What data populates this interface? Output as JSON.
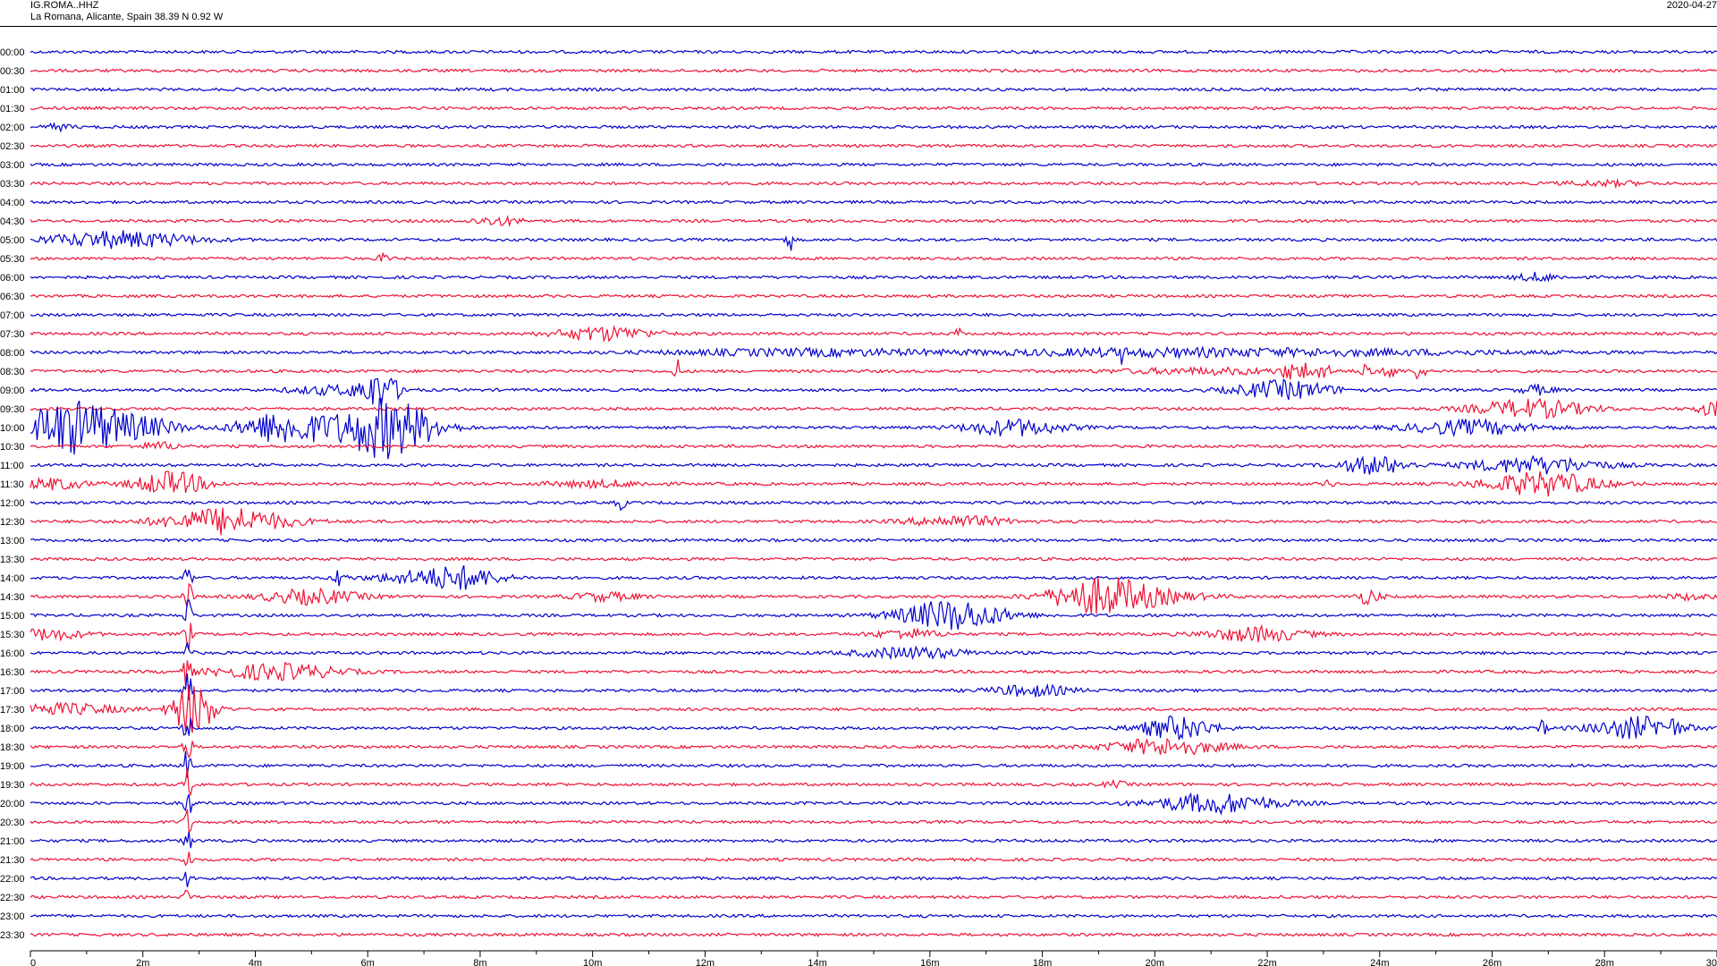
{
  "header": {
    "station": "IG.ROMA..HHZ",
    "location": "La Romana, Alicante, Spain  38.39 N 0.92 W",
    "date": "2020-04-27"
  },
  "chart_data": {
    "type": "line",
    "subtype": "helicorder",
    "title": "",
    "colors": [
      "#0000cc",
      "#ee1133"
    ],
    "grid": false,
    "xlabel": "",
    "xlim": [
      0,
      30
    ],
    "xunit": "minutes",
    "x_ticks": [
      "0",
      "2m",
      "4m",
      "6m",
      "8m",
      "10m",
      "12m",
      "14m",
      "16m",
      "18m",
      "20m",
      "22m",
      "24m",
      "26m",
      "28m",
      "30"
    ],
    "row_labels": [
      "00:00",
      "00:30",
      "01:00",
      "01:30",
      "02:00",
      "02:30",
      "03:00",
      "03:30",
      "04:00",
      "04:30",
      "05:00",
      "05:30",
      "06:00",
      "06:30",
      "07:00",
      "07:30",
      "08:00",
      "08:30",
      "09:00",
      "09:30",
      "10:00",
      "10:30",
      "11:00",
      "11:30",
      "12:00",
      "12:30",
      "13:00",
      "13:30",
      "14:00",
      "14:30",
      "15:00",
      "15:30",
      "16:00",
      "16:30",
      "17:00",
      "17:30",
      "18:00",
      "18:30",
      "19:00",
      "19:30",
      "20:00",
      "20:30",
      "21:00",
      "21:30",
      "22:00",
      "22:30",
      "23:00",
      "23:30"
    ],
    "events": [
      {
        "row": 4,
        "x": 0.5,
        "dur": 0.3,
        "amp": 0.35
      },
      {
        "row": 7,
        "x": 28.0,
        "dur": 1.0,
        "amp": 0.25
      },
      {
        "row": 9,
        "x": 8.3,
        "dur": 0.6,
        "amp": 0.45
      },
      {
        "row": 10,
        "x": 1.6,
        "dur": 1.8,
        "amp": 0.9
      },
      {
        "row": 10,
        "x": 13.5,
        "dur": 0.08,
        "amp": 1.6
      },
      {
        "row": 11,
        "x": 6.3,
        "dur": 0.15,
        "amp": 0.5
      },
      {
        "row": 12,
        "x": 26.8,
        "dur": 0.5,
        "amp": 0.45
      },
      {
        "row": 15,
        "x": 10.2,
        "dur": 1.2,
        "amp": 0.75
      },
      {
        "row": 15,
        "x": 16.5,
        "dur": 0.06,
        "amp": 1.0
      },
      {
        "row": 16,
        "x": 13.8,
        "dur": 3.5,
        "amp": 0.35
      },
      {
        "row": 16,
        "x": 19.5,
        "dur": 3.5,
        "amp": 0.3
      },
      {
        "row": 16,
        "x": 23.0,
        "dur": 5.0,
        "amp": 0.3
      },
      {
        "row": 16,
        "x": 19.4,
        "dur": 0.06,
        "amp": 0.9
      },
      {
        "row": 17,
        "x": 11.5,
        "dur": 0.08,
        "amp": 1.5
      },
      {
        "row": 17,
        "x": 22.4,
        "dur": 0.15,
        "amp": 1.1
      },
      {
        "row": 17,
        "x": 22.7,
        "dur": 0.15,
        "amp": 1.0
      },
      {
        "row": 17,
        "x": 23.0,
        "dur": 0.15,
        "amp": 1.0
      },
      {
        "row": 17,
        "x": 23.8,
        "dur": 0.15,
        "amp": 1.0
      },
      {
        "row": 17,
        "x": 24.2,
        "dur": 0.15,
        "amp": 1.0
      },
      {
        "row": 17,
        "x": 24.7,
        "dur": 0.15,
        "amp": 1.0
      },
      {
        "row": 17,
        "x": 21.0,
        "dur": 2.5,
        "amp": 0.3
      },
      {
        "row": 18,
        "x": 5.3,
        "dur": 1.0,
        "amp": 0.45
      },
      {
        "row": 18,
        "x": 6.2,
        "dur": 0.5,
        "amp": 2.0
      },
      {
        "row": 18,
        "x": 22.3,
        "dur": 1.2,
        "amp": 1.0
      },
      {
        "row": 18,
        "x": 26.8,
        "dur": 0.4,
        "amp": 0.5
      },
      {
        "row": 19,
        "x": 26.7,
        "dur": 1.4,
        "amp": 1.0
      },
      {
        "row": 19,
        "x": 30.0,
        "dur": 0.5,
        "amp": 0.8
      },
      {
        "row": 20,
        "x": 0.8,
        "dur": 1.5,
        "amp": 3.0
      },
      {
        "row": 20,
        "x": 2.2,
        "dur": 0.8,
        "amp": 0.5
      },
      {
        "row": 20,
        "x": 4.4,
        "dur": 1.0,
        "amp": 1.5
      },
      {
        "row": 20,
        "x": 5.2,
        "dur": 1.2,
        "amp": 0.7
      },
      {
        "row": 20,
        "x": 6.3,
        "dur": 1.0,
        "amp": 3.2
      },
      {
        "row": 20,
        "x": 7.0,
        "dur": 0.8,
        "amp": 0.6
      },
      {
        "row": 20,
        "x": 17.5,
        "dur": 1.2,
        "amp": 0.9
      },
      {
        "row": 20,
        "x": 25.6,
        "dur": 1.5,
        "amp": 0.8
      },
      {
        "row": 21,
        "x": 2.3,
        "dur": 0.5,
        "amp": 0.4
      },
      {
        "row": 22,
        "x": 23.9,
        "dur": 0.8,
        "amp": 1.0
      },
      {
        "row": 22,
        "x": 26.8,
        "dur": 1.6,
        "amp": 0.9
      },
      {
        "row": 23,
        "x": 0.4,
        "dur": 0.8,
        "amp": 0.6
      },
      {
        "row": 23,
        "x": 2.5,
        "dur": 0.9,
        "amp": 1.3
      },
      {
        "row": 23,
        "x": 10.1,
        "dur": 1.2,
        "amp": 0.35
      },
      {
        "row": 23,
        "x": 23.1,
        "dur": 0.1,
        "amp": 0.6
      },
      {
        "row": 23,
        "x": 26.9,
        "dur": 1.4,
        "amp": 1.3
      },
      {
        "row": 24,
        "x": 10.5,
        "dur": 0.1,
        "amp": 1.0
      },
      {
        "row": 25,
        "x": 3.5,
        "dur": 1.5,
        "amp": 1.5
      },
      {
        "row": 25,
        "x": 16.5,
        "dur": 1.2,
        "amp": 0.6
      },
      {
        "row": 28,
        "x": 5.5,
        "dur": 0.15,
        "amp": 1.0
      },
      {
        "row": 28,
        "x": 6.8,
        "dur": 1.0,
        "amp": 0.6
      },
      {
        "row": 28,
        "x": 7.7,
        "dur": 0.9,
        "amp": 1.2
      },
      {
        "row": 28,
        "x": 2.8,
        "dur": 0.1,
        "amp": 1.5
      },
      {
        "row": 29,
        "x": 2.8,
        "dur": 0.1,
        "amp": 2.0
      },
      {
        "row": 29,
        "x": 5.0,
        "dur": 1.2,
        "amp": 0.8
      },
      {
        "row": 29,
        "x": 10.2,
        "dur": 0.8,
        "amp": 0.45
      },
      {
        "row": 29,
        "x": 19.0,
        "dur": 1.2,
        "amp": 1.8
      },
      {
        "row": 29,
        "x": 19.8,
        "dur": 1.5,
        "amp": 0.6
      },
      {
        "row": 29,
        "x": 23.8,
        "dur": 0.3,
        "amp": 0.8
      },
      {
        "row": 29,
        "x": 29.5,
        "dur": 0.6,
        "amp": 0.3
      },
      {
        "row": 30,
        "x": 2.8,
        "dur": 0.1,
        "amp": 2.0
      },
      {
        "row": 30,
        "x": 16.4,
        "dur": 1.3,
        "amp": 1.7
      },
      {
        "row": 31,
        "x": 0.3,
        "dur": 0.9,
        "amp": 0.6
      },
      {
        "row": 31,
        "x": 2.8,
        "dur": 0.1,
        "amp": 2.0
      },
      {
        "row": 31,
        "x": 15.6,
        "dur": 0.8,
        "amp": 0.5
      },
      {
        "row": 31,
        "x": 21.8,
        "dur": 1.2,
        "amp": 0.8
      },
      {
        "row": 32,
        "x": 2.8,
        "dur": 0.1,
        "amp": 2.0
      },
      {
        "row": 32,
        "x": 15.7,
        "dur": 1.4,
        "amp": 0.6
      },
      {
        "row": 33,
        "x": 2.8,
        "dur": 0.1,
        "amp": 2.0
      },
      {
        "row": 33,
        "x": 4.4,
        "dur": 1.5,
        "amp": 0.9
      },
      {
        "row": 34,
        "x": 2.8,
        "dur": 0.1,
        "amp": 2.0
      },
      {
        "row": 34,
        "x": 17.8,
        "dur": 1.0,
        "amp": 0.6
      },
      {
        "row": 35,
        "x": 0.5,
        "dur": 1.5,
        "amp": 0.6
      },
      {
        "row": 35,
        "x": 2.9,
        "dur": 0.5,
        "amp": 3.0
      },
      {
        "row": 36,
        "x": 2.8,
        "dur": 0.1,
        "amp": 2.0
      },
      {
        "row": 36,
        "x": 20.4,
        "dur": 0.9,
        "amp": 1.3
      },
      {
        "row": 36,
        "x": 26.9,
        "dur": 0.1,
        "amp": 0.8
      },
      {
        "row": 36,
        "x": 28.6,
        "dur": 1.1,
        "amp": 1.2
      },
      {
        "row": 36,
        "x": 29.2,
        "dur": 0.1,
        "amp": 0.6
      },
      {
        "row": 37,
        "x": 2.8,
        "dur": 0.1,
        "amp": 2.0
      },
      {
        "row": 37,
        "x": 20.2,
        "dur": 1.4,
        "amp": 0.9
      },
      {
        "row": 38,
        "x": 2.8,
        "dur": 0.1,
        "amp": 2.0
      },
      {
        "row": 39,
        "x": 2.8,
        "dur": 0.1,
        "amp": 2.0
      },
      {
        "row": 39,
        "x": 19.3,
        "dur": 0.3,
        "amp": 0.3
      },
      {
        "row": 40,
        "x": 2.8,
        "dur": 0.1,
        "amp": 2.0
      },
      {
        "row": 40,
        "x": 21.1,
        "dur": 1.5,
        "amp": 1.1
      },
      {
        "row": 41,
        "x": 2.8,
        "dur": 0.1,
        "amp": 1.5
      },
      {
        "row": 42,
        "x": 2.8,
        "dur": 0.1,
        "amp": 1.2
      },
      {
        "row": 43,
        "x": 2.8,
        "dur": 0.1,
        "amp": 1.2
      },
      {
        "row": 44,
        "x": 2.8,
        "dur": 0.1,
        "amp": 1.2
      },
      {
        "row": 45,
        "x": 2.8,
        "dur": 0.1,
        "amp": 1.0
      }
    ]
  }
}
